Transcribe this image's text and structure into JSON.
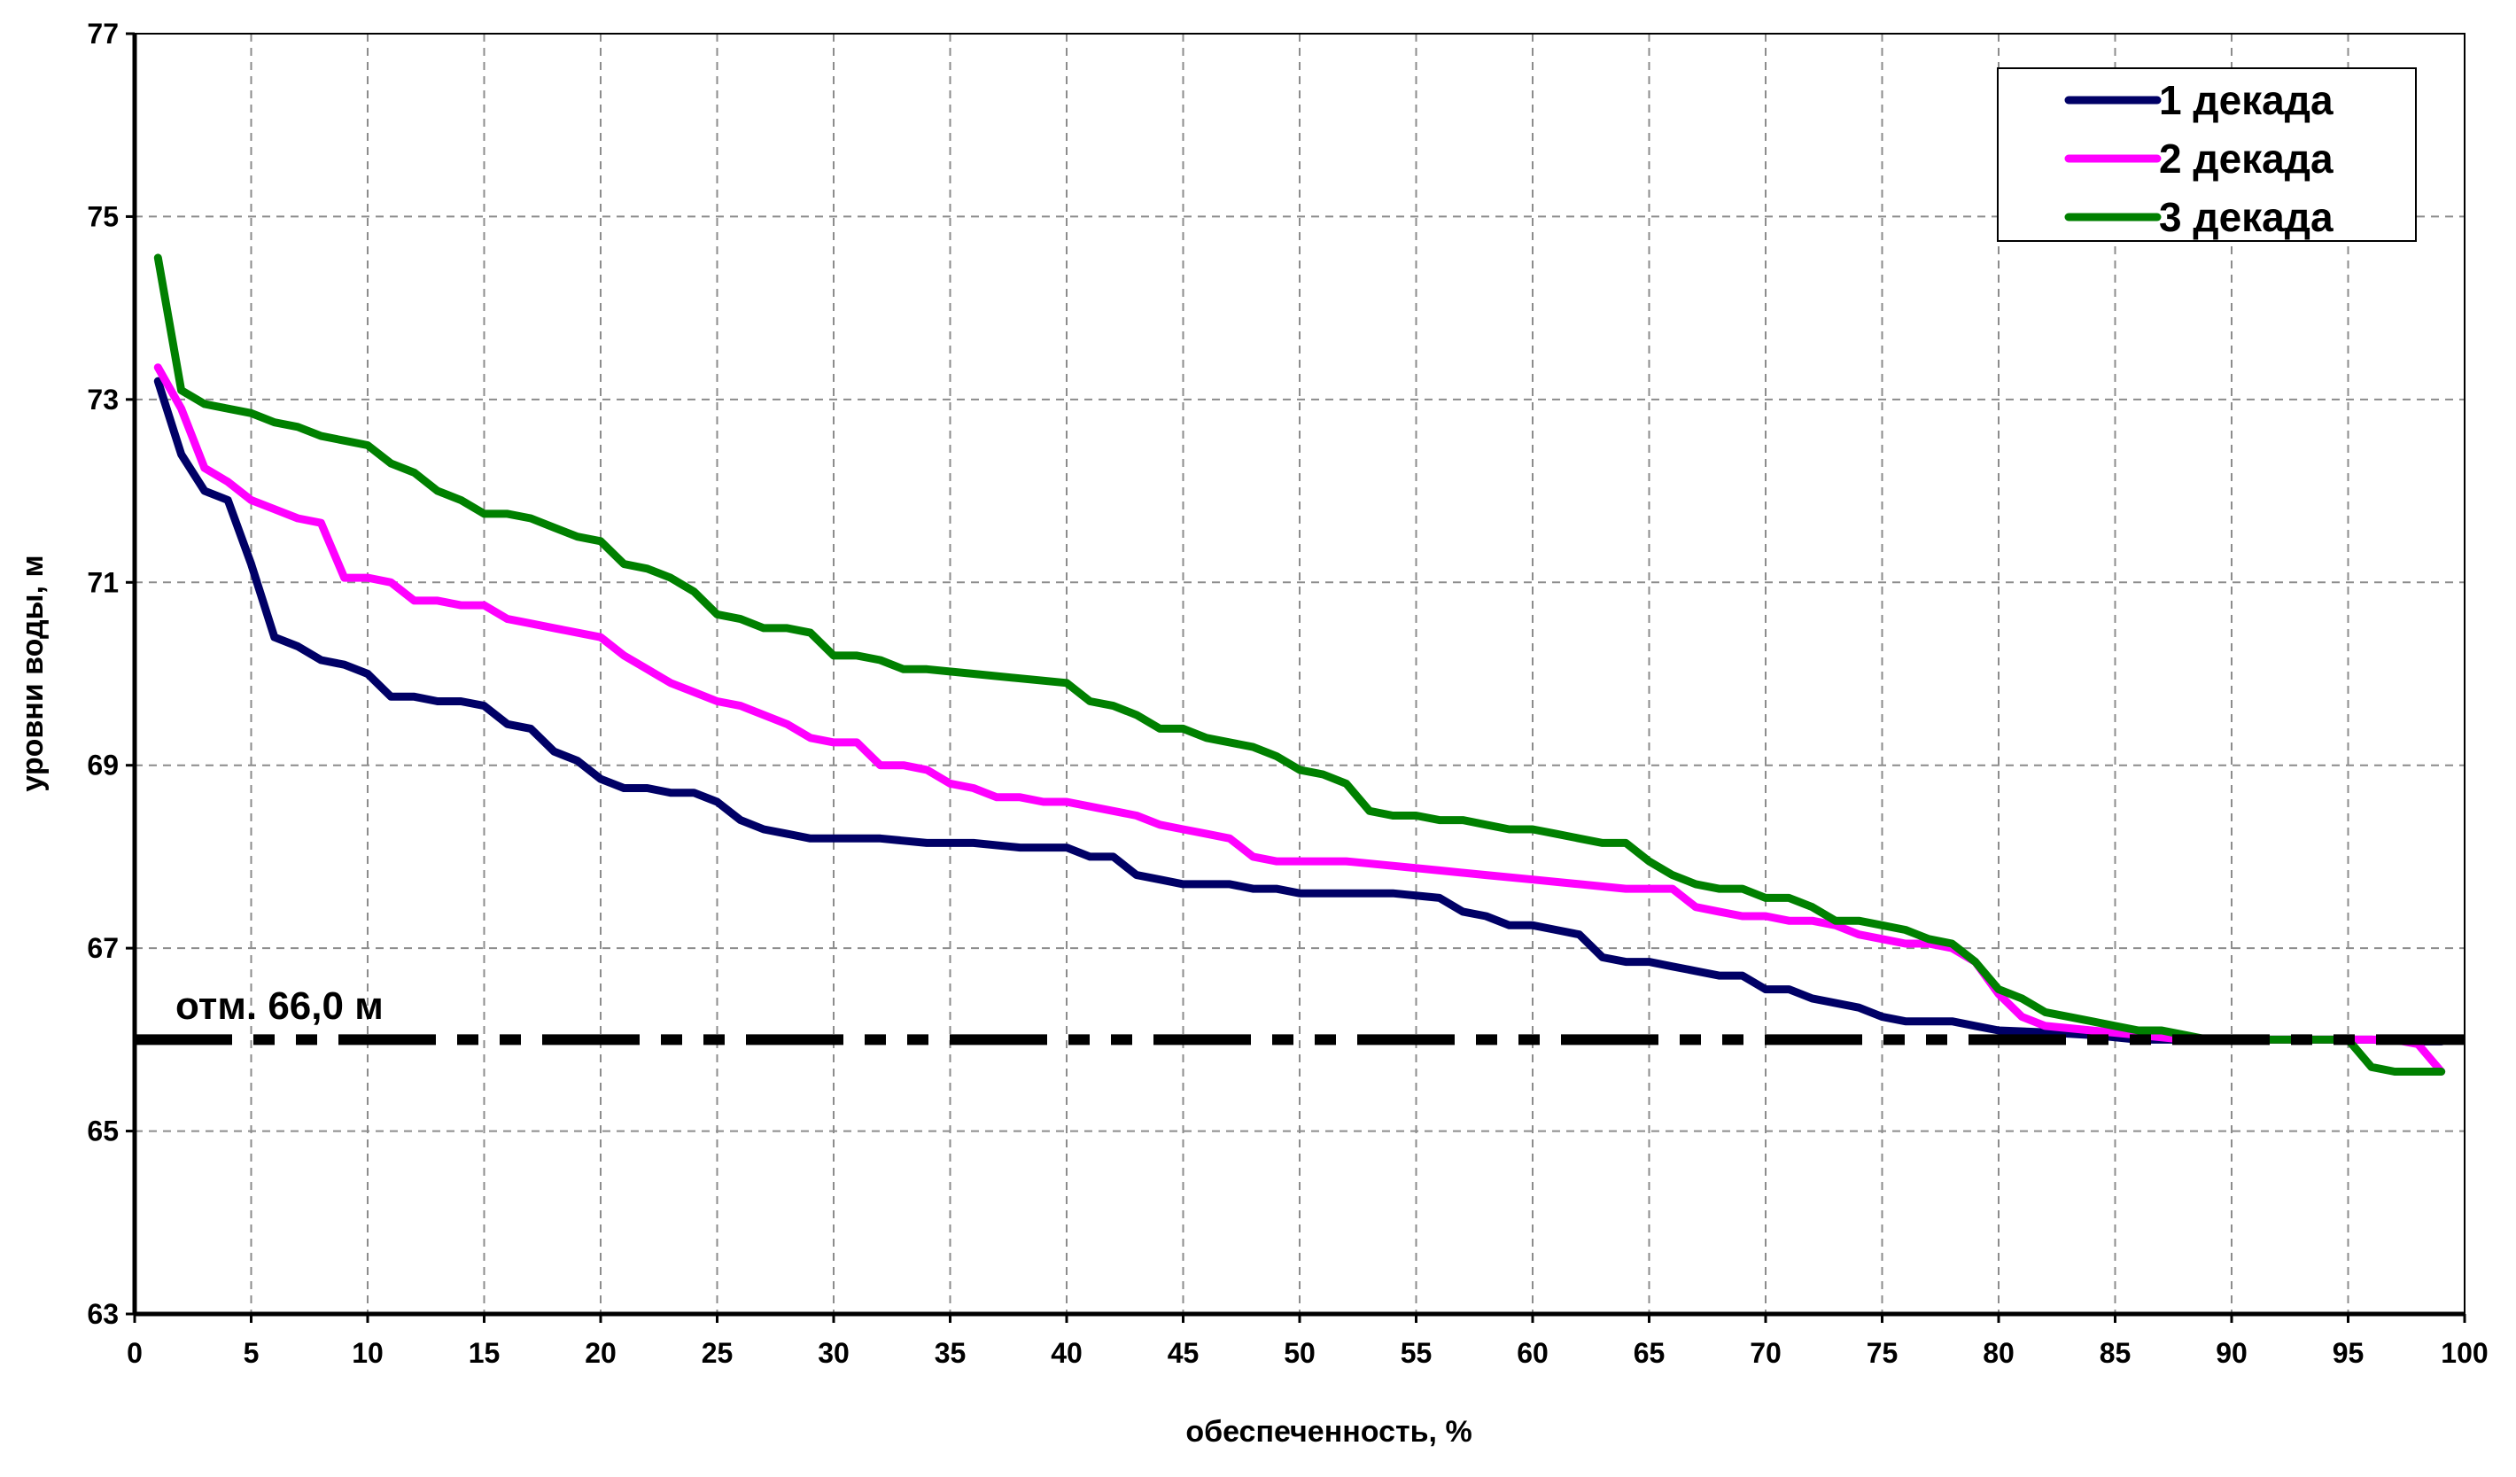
{
  "chart_data": {
    "type": "line",
    "title": "",
    "xlabel": "обеспеченность, %",
    "ylabel": "уровни воды, м",
    "xlim": [
      0,
      100
    ],
    "ylim": [
      63,
      77
    ],
    "x_ticks": [
      "0",
      "5",
      "10",
      "15",
      "20",
      "25",
      "30",
      "35",
      "40",
      "45",
      "50",
      "55",
      "60",
      "65",
      "70",
      "75",
      "80",
      "85",
      "90",
      "95",
      "100"
    ],
    "y_ticks": [
      "63",
      "65",
      "67",
      "69",
      "71",
      "73",
      "75",
      "77"
    ],
    "grid": true,
    "legend_position": "top-right",
    "reference_line": {
      "y": 66.0,
      "label": "отм. 66,0 м",
      "color": "#000000"
    },
    "series": [
      {
        "name": "1 декада",
        "color": "#000066",
        "points": [
          [
            1,
            73.2
          ],
          [
            2,
            72.4
          ],
          [
            3,
            72.0
          ],
          [
            4,
            71.9
          ],
          [
            5,
            71.2
          ],
          [
            6,
            70.4
          ],
          [
            7,
            70.3
          ],
          [
            8,
            70.15
          ],
          [
            9,
            70.1
          ],
          [
            10,
            70.0
          ],
          [
            11,
            69.75
          ],
          [
            12,
            69.75
          ],
          [
            13,
            69.7
          ],
          [
            14,
            69.7
          ],
          [
            15,
            69.65
          ],
          [
            16,
            69.45
          ],
          [
            17,
            69.4
          ],
          [
            18,
            69.15
          ],
          [
            19,
            69.05
          ],
          [
            20,
            68.85
          ],
          [
            21,
            68.75
          ],
          [
            22,
            68.75
          ],
          [
            23,
            68.7
          ],
          [
            24,
            68.7
          ],
          [
            25,
            68.6
          ],
          [
            26,
            68.4
          ],
          [
            27,
            68.3
          ],
          [
            28,
            68.25
          ],
          [
            29,
            68.2
          ],
          [
            30,
            68.2
          ],
          [
            32,
            68.2
          ],
          [
            34,
            68.15
          ],
          [
            36,
            68.15
          ],
          [
            38,
            68.1
          ],
          [
            40,
            68.1
          ],
          [
            41,
            68.0
          ],
          [
            42,
            68.0
          ],
          [
            43,
            67.8
          ],
          [
            44,
            67.75
          ],
          [
            45,
            67.7
          ],
          [
            46,
            67.7
          ],
          [
            47,
            67.7
          ],
          [
            48,
            67.65
          ],
          [
            49,
            67.65
          ],
          [
            50,
            67.6
          ],
          [
            52,
            67.6
          ],
          [
            54,
            67.6
          ],
          [
            56,
            67.55
          ],
          [
            57,
            67.4
          ],
          [
            58,
            67.35
          ],
          [
            59,
            67.25
          ],
          [
            60,
            67.25
          ],
          [
            61,
            67.2
          ],
          [
            62,
            67.15
          ],
          [
            63,
            66.9
          ],
          [
            64,
            66.85
          ],
          [
            65,
            66.85
          ],
          [
            66,
            66.8
          ],
          [
            67,
            66.75
          ],
          [
            68,
            66.7
          ],
          [
            69,
            66.7
          ],
          [
            70,
            66.55
          ],
          [
            71,
            66.55
          ],
          [
            72,
            66.45
          ],
          [
            73,
            66.4
          ],
          [
            74,
            66.35
          ],
          [
            75,
            66.25
          ],
          [
            76,
            66.2
          ],
          [
            77,
            66.2
          ],
          [
            78,
            66.2
          ],
          [
            79,
            66.15
          ],
          [
            80,
            66.1
          ],
          [
            82,
            66.08
          ],
          [
            84,
            66.05
          ],
          [
            86,
            66.0
          ],
          [
            88,
            66.0
          ],
          [
            90,
            66.0
          ],
          [
            92,
            66.0
          ],
          [
            94,
            66.0
          ],
          [
            96,
            66.0
          ],
          [
            98,
            65.98
          ],
          [
            99,
            65.98
          ]
        ]
      },
      {
        "name": "2 декада",
        "color": "#ff00ff",
        "points": [
          [
            1,
            73.35
          ],
          [
            2,
            72.9
          ],
          [
            3,
            72.25
          ],
          [
            4,
            72.1
          ],
          [
            5,
            71.9
          ],
          [
            6,
            71.8
          ],
          [
            7,
            71.7
          ],
          [
            8,
            71.65
          ],
          [
            9,
            71.05
          ],
          [
            10,
            71.05
          ],
          [
            11,
            71.0
          ],
          [
            12,
            70.8
          ],
          [
            13,
            70.8
          ],
          [
            14,
            70.75
          ],
          [
            15,
            70.75
          ],
          [
            16,
            70.6
          ],
          [
            17,
            70.55
          ],
          [
            18,
            70.5
          ],
          [
            19,
            70.45
          ],
          [
            20,
            70.4
          ],
          [
            21,
            70.2
          ],
          [
            22,
            70.05
          ],
          [
            23,
            69.9
          ],
          [
            24,
            69.8
          ],
          [
            25,
            69.7
          ],
          [
            26,
            69.65
          ],
          [
            27,
            69.55
          ],
          [
            28,
            69.45
          ],
          [
            29,
            69.3
          ],
          [
            30,
            69.25
          ],
          [
            31,
            69.25
          ],
          [
            32,
            69.0
          ],
          [
            33,
            69.0
          ],
          [
            34,
            68.95
          ],
          [
            35,
            68.8
          ],
          [
            36,
            68.75
          ],
          [
            37,
            68.65
          ],
          [
            38,
            68.65
          ],
          [
            39,
            68.6
          ],
          [
            40,
            68.6
          ],
          [
            41,
            68.55
          ],
          [
            42,
            68.5
          ],
          [
            43,
            68.45
          ],
          [
            44,
            68.35
          ],
          [
            45,
            68.3
          ],
          [
            46,
            68.25
          ],
          [
            47,
            68.2
          ],
          [
            48,
            68.0
          ],
          [
            49,
            67.95
          ],
          [
            50,
            67.95
          ],
          [
            52,
            67.95
          ],
          [
            54,
            67.9
          ],
          [
            56,
            67.85
          ],
          [
            58,
            67.8
          ],
          [
            60,
            67.75
          ],
          [
            62,
            67.7
          ],
          [
            64,
            67.65
          ],
          [
            66,
            67.65
          ],
          [
            67,
            67.45
          ],
          [
            68,
            67.4
          ],
          [
            69,
            67.35
          ],
          [
            70,
            67.35
          ],
          [
            71,
            67.3
          ],
          [
            72,
            67.3
          ],
          [
            73,
            67.25
          ],
          [
            74,
            67.15
          ],
          [
            75,
            67.1
          ],
          [
            76,
            67.05
          ],
          [
            77,
            67.05
          ],
          [
            78,
            67.0
          ],
          [
            79,
            66.85
          ],
          [
            80,
            66.5
          ],
          [
            81,
            66.25
          ],
          [
            82,
            66.15
          ],
          [
            84,
            66.1
          ],
          [
            86,
            66.05
          ],
          [
            88,
            66.0
          ],
          [
            90,
            66.0
          ],
          [
            92,
            66.0
          ],
          [
            94,
            66.0
          ],
          [
            96,
            66.0
          ],
          [
            97,
            66.0
          ],
          [
            98,
            65.95
          ],
          [
            99,
            65.65
          ]
        ]
      },
      {
        "name": "3 декада",
        "color": "#008000",
        "points": [
          [
            1,
            74.55
          ],
          [
            2,
            73.1
          ],
          [
            3,
            72.95
          ],
          [
            4,
            72.9
          ],
          [
            5,
            72.85
          ],
          [
            6,
            72.75
          ],
          [
            7,
            72.7
          ],
          [
            8,
            72.6
          ],
          [
            9,
            72.55
          ],
          [
            10,
            72.5
          ],
          [
            11,
            72.3
          ],
          [
            12,
            72.2
          ],
          [
            13,
            72.0
          ],
          [
            14,
            71.9
          ],
          [
            15,
            71.75
          ],
          [
            16,
            71.75
          ],
          [
            17,
            71.7
          ],
          [
            18,
            71.6
          ],
          [
            19,
            71.5
          ],
          [
            20,
            71.45
          ],
          [
            21,
            71.2
          ],
          [
            22,
            71.15
          ],
          [
            23,
            71.05
          ],
          [
            24,
            70.9
          ],
          [
            25,
            70.65
          ],
          [
            26,
            70.6
          ],
          [
            27,
            70.5
          ],
          [
            28,
            70.5
          ],
          [
            29,
            70.45
          ],
          [
            30,
            70.2
          ],
          [
            31,
            70.2
          ],
          [
            32,
            70.15
          ],
          [
            33,
            70.05
          ],
          [
            34,
            70.05
          ],
          [
            36,
            70.0
          ],
          [
            38,
            69.95
          ],
          [
            40,
            69.9
          ],
          [
            41,
            69.7
          ],
          [
            42,
            69.65
          ],
          [
            43,
            69.55
          ],
          [
            44,
            69.4
          ],
          [
            45,
            69.4
          ],
          [
            46,
            69.3
          ],
          [
            47,
            69.25
          ],
          [
            48,
            69.2
          ],
          [
            49,
            69.1
          ],
          [
            50,
            68.95
          ],
          [
            51,
            68.9
          ],
          [
            52,
            68.8
          ],
          [
            53,
            68.5
          ],
          [
            54,
            68.45
          ],
          [
            55,
            68.45
          ],
          [
            56,
            68.4
          ],
          [
            57,
            68.4
          ],
          [
            58,
            68.35
          ],
          [
            59,
            68.3
          ],
          [
            60,
            68.3
          ],
          [
            61,
            68.25
          ],
          [
            62,
            68.2
          ],
          [
            63,
            68.15
          ],
          [
            64,
            68.15
          ],
          [
            65,
            67.95
          ],
          [
            66,
            67.8
          ],
          [
            67,
            67.7
          ],
          [
            68,
            67.65
          ],
          [
            69,
            67.65
          ],
          [
            70,
            67.55
          ],
          [
            71,
            67.55
          ],
          [
            72,
            67.45
          ],
          [
            73,
            67.3
          ],
          [
            74,
            67.3
          ],
          [
            75,
            67.25
          ],
          [
            76,
            67.2
          ],
          [
            77,
            67.1
          ],
          [
            78,
            67.05
          ],
          [
            79,
            66.85
          ],
          [
            80,
            66.55
          ],
          [
            81,
            66.45
          ],
          [
            82,
            66.3
          ],
          [
            83,
            66.25
          ],
          [
            84,
            66.2
          ],
          [
            85,
            66.15
          ],
          [
            86,
            66.1
          ],
          [
            87,
            66.1
          ],
          [
            88,
            66.05
          ],
          [
            89,
            66.0
          ],
          [
            90,
            66.0
          ],
          [
            92,
            66.0
          ],
          [
            94,
            66.0
          ],
          [
            95,
            66.0
          ],
          [
            96,
            65.7
          ],
          [
            97,
            65.65
          ],
          [
            98,
            65.65
          ],
          [
            99,
            65.65
          ]
        ]
      }
    ]
  }
}
